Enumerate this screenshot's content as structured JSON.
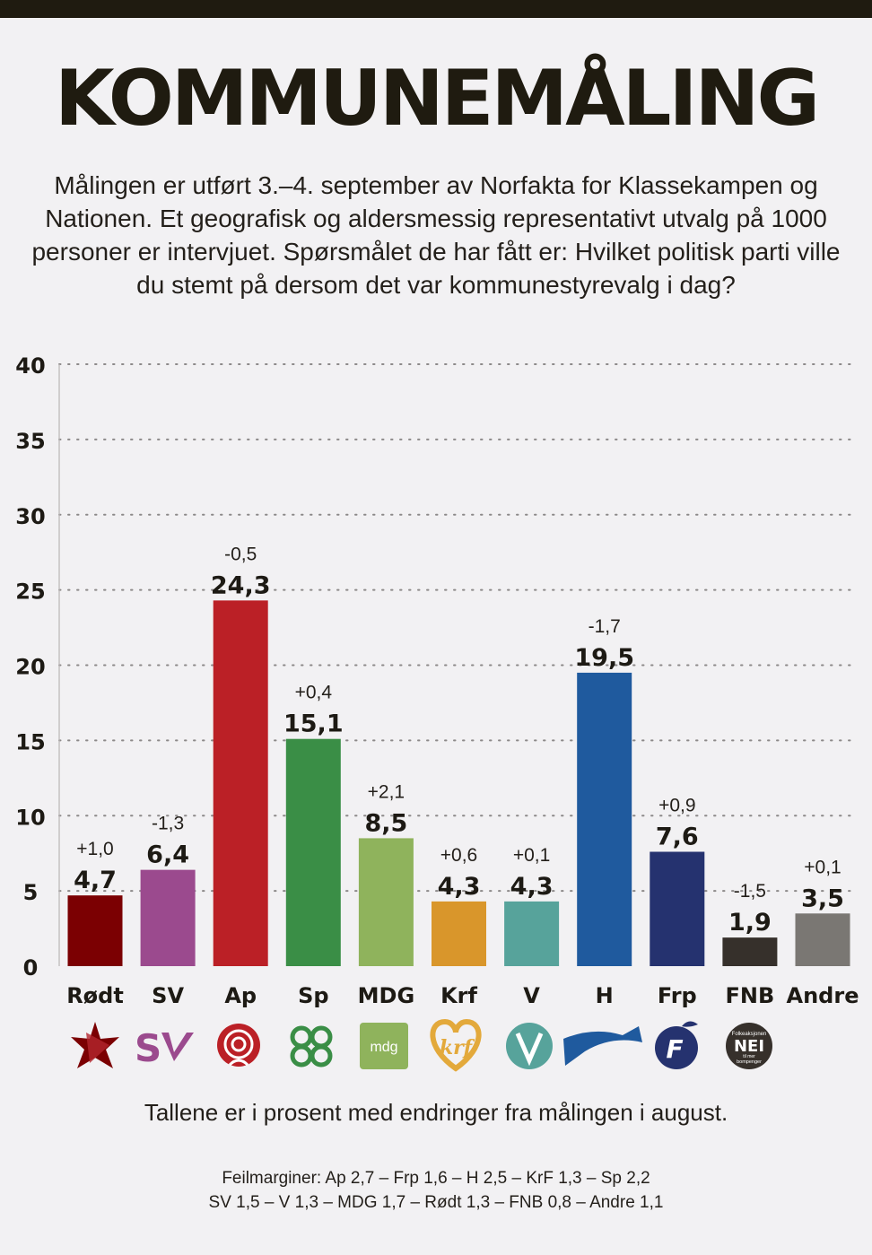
{
  "title": "KOMMUNEMÅLING",
  "intro": "Målingen er utført 3.–4. september av Norfakta for Klassekampen og Nationen. Et geografisk og aldersmessig representativt utvalg på 1000 personer er intervjuet. Spørsmålet de har fått er: Hvilket politisk parti ville du stemt på dersom det var kommunestyrevalg i dag?",
  "footnote": "Tallene er i prosent med endringer fra målingen i august.",
  "margins_line1": "Feilmarginer: Ap 2,7 – Frp 1,6 – H 2,5 – KrF 1,3 – Sp 2,2",
  "margins_line2": "SV 1,5 – V 1,3 – MDG 1,7 – Rødt 1,3 – FNB 0,8 – Andre 1,1",
  "logo_text": {
    "mdg": "mdg",
    "fnb_top": "Folkeaksjonen",
    "fnb_main": "NEI",
    "fnb_bottom1": "til mer",
    "fnb_bottom2": "bompenger"
  },
  "chart_data": {
    "type": "bar",
    "title": "KOMMUNEMÅLING",
    "categories": [
      "Rødt",
      "SV",
      "Ap",
      "Sp",
      "MDG",
      "Krf",
      "V",
      "H",
      "Frp",
      "FNB",
      "Andre"
    ],
    "values": [
      4.7,
      6.4,
      24.3,
      15.1,
      8.5,
      4.3,
      4.3,
      19.5,
      7.6,
      1.9,
      3.5
    ],
    "value_labels": [
      "4,7",
      "6,4",
      "24,3",
      "15,1",
      "8,5",
      "4,3",
      "4,3",
      "19,5",
      "7,6",
      "1,9",
      "3,5"
    ],
    "changes": [
      "+1,0",
      "-1,3",
      "-0,5",
      "+0,4",
      "+2,1",
      "+0,6",
      "+0,1",
      "-1,7",
      "+0,9",
      "-1,5",
      "+0,1"
    ],
    "colors": [
      "#7b0002",
      "#9b4a8e",
      "#bb2026",
      "#3a8e46",
      "#8fb35c",
      "#d9962b",
      "#57a39b",
      "#1f5a9e",
      "#25326f",
      "#36302b",
      "#7a7773"
    ],
    "y_ticks": [
      0,
      5,
      10,
      15,
      20,
      25,
      30,
      35,
      40
    ],
    "ylim": [
      0,
      40
    ],
    "xlabel": "",
    "ylabel": "",
    "grid": true
  }
}
